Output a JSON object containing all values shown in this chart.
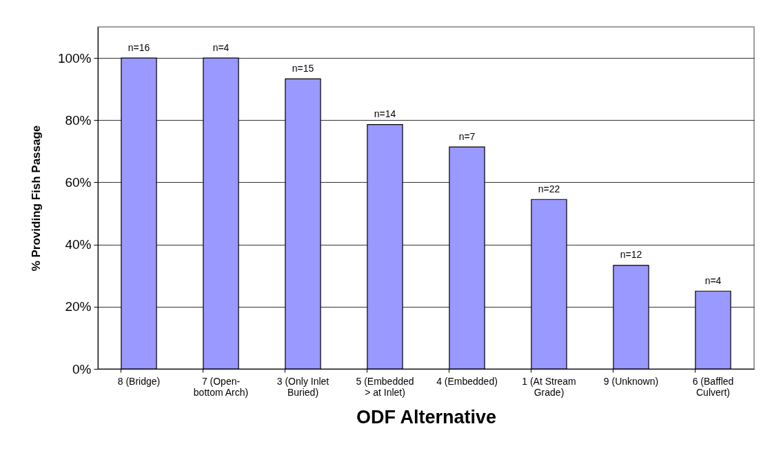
{
  "chart_data": {
    "type": "bar",
    "xlabel": "ODF Alternative",
    "ylabel": "% Providing Fish Passage",
    "categories": [
      "8 (Bridge)",
      "7 (Open-bottom Arch)",
      "3 (Only Inlet Buried)",
      "5 (Embedded > at Inlet)",
      "4 (Embedded)",
      "1 (At Stream Grade)",
      "9 (Unknown)",
      "6 (Baffled Culvert)"
    ],
    "values": [
      100,
      100,
      93.3,
      78.6,
      71.4,
      54.5,
      33.3,
      25
    ],
    "color": "#9999ff",
    "annotations": [
      "n=16",
      "n=4",
      "n=15",
      "n=14",
      "n=7",
      "n=22",
      "n=12",
      "n=4"
    ],
    "ylim": [
      0,
      110
    ],
    "yticks": [
      {
        "value": 0,
        "label": "0%"
      },
      {
        "value": 20,
        "label": "20%"
      },
      {
        "value": 40,
        "label": "40%"
      },
      {
        "value": 60,
        "label": "60%"
      },
      {
        "value": 80,
        "label": "80%"
      },
      {
        "value": 100,
        "label": "100%"
      }
    ],
    "grid": "y"
  }
}
